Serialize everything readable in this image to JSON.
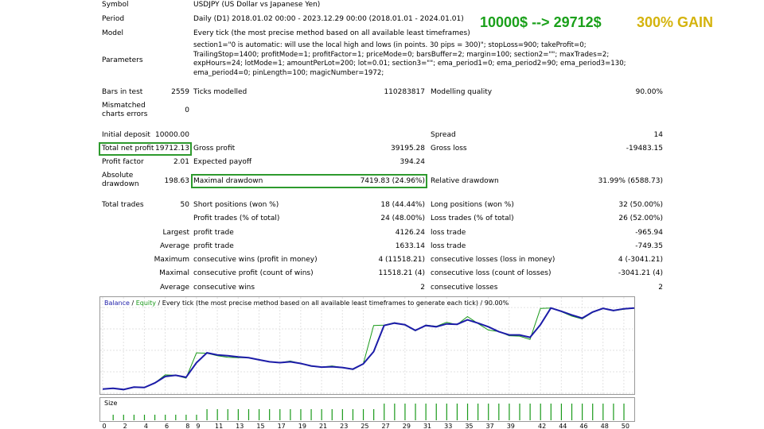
{
  "header": {
    "result_text": "10000$ --> 29712$",
    "gain_text": "300% GAIN",
    "result_color": "#1aa01a",
    "gain_color": "#d4b30c"
  },
  "info": {
    "symbol_label": "Symbol",
    "symbol_value": "USDJPY (US Dollar vs Japanese Yen)",
    "period_label": "Period",
    "period_value": "Daily (D1) 2018.01.02 00:00 - 2023.12.29 00:00 (2018.01.01 - 2024.01.01)",
    "model_label": "Model",
    "model_value": "Every tick (the most precise method based on all available least timeframes)",
    "parameters_label": "Parameters",
    "parameters_value": "section1=\"0 is automatic: will use the local high and lows (in points. 30 pips = 300)\"; stopLoss=900; takeProfit=0; TrailingStop=1400; profitMode=1; profitFactor=1; priceMode=0; barsBuffer=2; margin=100; section2=\"\"; maxTrades=2; expHours=24; lotMode=1; amountPerLot=200; lot=0.01; section3=\"\"; ema_period1=0; ema_period2=90; ema_period3=130; ema_period4=0; pinLength=100; magicNumber=1972;"
  },
  "stats": {
    "bars_label": "Bars in test",
    "bars_value": "2559",
    "ticks_label": "Ticks modelled",
    "ticks_value": "110283817",
    "quality_label": "Modelling quality",
    "quality_value": "90.00%",
    "mismatch_label": "Mismatched charts errors",
    "mismatch_value": "0",
    "deposit_label": "Initial deposit",
    "deposit_value": "10000.00",
    "spread_label": "Spread",
    "spread_value": "14",
    "net_label": "Total net profit",
    "net_value": "19712.13",
    "gross_profit_label": "Gross profit",
    "gross_profit_value": "39195.28",
    "gross_loss_label": "Gross loss",
    "gross_loss_value": "-19483.15",
    "pf_label": "Profit factor",
    "pf_value": "2.01",
    "payoff_label": "Expected payoff",
    "payoff_value": "394.24",
    "abs_dd_label": "Absolute drawdown",
    "abs_dd_value": "198.63",
    "max_dd_label": "Maximal drawdown",
    "max_dd_value": "7419.83 (24.96%)",
    "rel_dd_label": "Relative drawdown",
    "rel_dd_value": "31.99% (6588.73)",
    "trades_label": "Total trades",
    "trades_value": "50",
    "short_label": "Short positions (won %)",
    "short_value": "18 (44.44%)",
    "long_label": "Long positions (won %)",
    "long_value": "32 (50.00%)",
    "profit_trades_label": "Profit trades (% of total)",
    "profit_trades_value": "24 (48.00%)",
    "loss_trades_label": "Loss trades (% of total)",
    "loss_trades_value": "26 (52.00%)",
    "largest_label": "Largest",
    "largest_profit_label": "profit trade",
    "largest_profit_value": "4126.24",
    "largest_loss_label": "loss trade",
    "largest_loss_value": "-965.94",
    "average_label": "Average",
    "average_profit_label": "profit trade",
    "average_profit_value": "1633.14",
    "average_loss_label": "loss trade",
    "average_loss_value": "-749.35",
    "maximum_label": "Maximum",
    "max_wins_label": "consecutive wins (profit in money)",
    "max_wins_value": "4 (11518.21)",
    "max_losses_label": "consecutive losses (loss in money)",
    "max_losses_value": "4 (-3041.21)",
    "maximal_label": "Maximal",
    "maximal_profit_label": "consecutive profit (count of wins)",
    "maximal_profit_value": "11518.21 (4)",
    "maximal_loss_label": "consecutive loss (count of losses)",
    "maximal_loss_value": "-3041.21 (4)",
    "avg_cons_label": "Average",
    "avg_wins_label": "consecutive wins",
    "avg_wins_value": "2",
    "avg_losses_label": "consecutive losses",
    "avg_losses_value": "2"
  },
  "chart_data": {
    "type": "line",
    "legend_balance": "Balance",
    "legend_sep": " / ",
    "legend_equity": "Equity",
    "legend_rest": " / Every tick (the most precise method based on all available least timeframes to generate each tick) / 90.00%",
    "balance_color": "#1c1ca8",
    "equity_color": "#1a9a1a",
    "y_ticks": [
      30016,
      24760,
      19505,
      14249,
      8993
    ],
    "ylim": [
      8993,
      31200
    ],
    "xlim": [
      0,
      51
    ],
    "x_ticks": [
      0,
      2,
      4,
      6,
      8,
      9,
      11,
      13,
      15,
      17,
      19,
      21,
      23,
      25,
      27,
      29,
      31,
      33,
      35,
      37,
      39,
      42,
      44,
      46,
      48,
      50
    ],
    "size_label": "Size",
    "series": [
      {
        "name": "Balance",
        "x": [
          0,
          1,
          2,
          3,
          4,
          5,
          6,
          7,
          8,
          9,
          10,
          11,
          12,
          13,
          14,
          15,
          16,
          17,
          18,
          19,
          20,
          21,
          22,
          23,
          24,
          25,
          26,
          27,
          28,
          29,
          30,
          31,
          32,
          33,
          34,
          35,
          36,
          37,
          38,
          39,
          40,
          41,
          42,
          43,
          44,
          45,
          46,
          47,
          48,
          49,
          50,
          51
        ],
        "values": [
          10000,
          10200,
          9900,
          10500,
          10400,
          11500,
          13100,
          13400,
          12900,
          16500,
          18900,
          18400,
          18200,
          17900,
          17700,
          17200,
          16700,
          16500,
          16700,
          16300,
          15700,
          15400,
          15500,
          15300,
          14900,
          16200,
          19200,
          25600,
          26200,
          25800,
          24400,
          25600,
          25300,
          26000,
          25900,
          27000,
          26200,
          25300,
          24100,
          23300,
          23300,
          22700,
          25800,
          29900,
          29100,
          28200,
          27400,
          28900,
          29800,
          29300,
          29700,
          29900
        ]
      },
      {
        "name": "Equity",
        "x": [
          0,
          1,
          2,
          3,
          4,
          5,
          6,
          7,
          8,
          9,
          10,
          11,
          12,
          13,
          14,
          15,
          16,
          17,
          18,
          19,
          20,
          21,
          22,
          23,
          24,
          25,
          26,
          27,
          28,
          29,
          30,
          31,
          32,
          33,
          34,
          35,
          36,
          37,
          38,
          39,
          40,
          41,
          42,
          43,
          44,
          45,
          46,
          47,
          48,
          49,
          50,
          51
        ],
        "values": [
          10000,
          10200,
          9900,
          10500,
          10400,
          11500,
          13500,
          13400,
          12700,
          18900,
          18800,
          18200,
          17800,
          17700,
          17700,
          17200,
          16700,
          16500,
          16900,
          16300,
          15600,
          15400,
          15700,
          15300,
          14800,
          16200,
          25600,
          25700,
          26300,
          25700,
          24300,
          25700,
          25400,
          26400,
          25800,
          27800,
          26100,
          24500,
          24100,
          23100,
          23000,
          22200,
          29800,
          29900,
          29000,
          27900,
          27200,
          28800,
          29800,
          29200,
          29600,
          29900
        ]
      }
    ],
    "size_bars": [
      1,
      1,
      1,
      1,
      1,
      1,
      1,
      1,
      1,
      2,
      2,
      2,
      2,
      2,
      2,
      2,
      2,
      2,
      2,
      2,
      2,
      2,
      2,
      2,
      2,
      2,
      3,
      3,
      3,
      3,
      3,
      3,
      3,
      3,
      3,
      3,
      3,
      3,
      3,
      3,
      3,
      3,
      3,
      3,
      3,
      3,
      3,
      3,
      3,
      3
    ]
  }
}
